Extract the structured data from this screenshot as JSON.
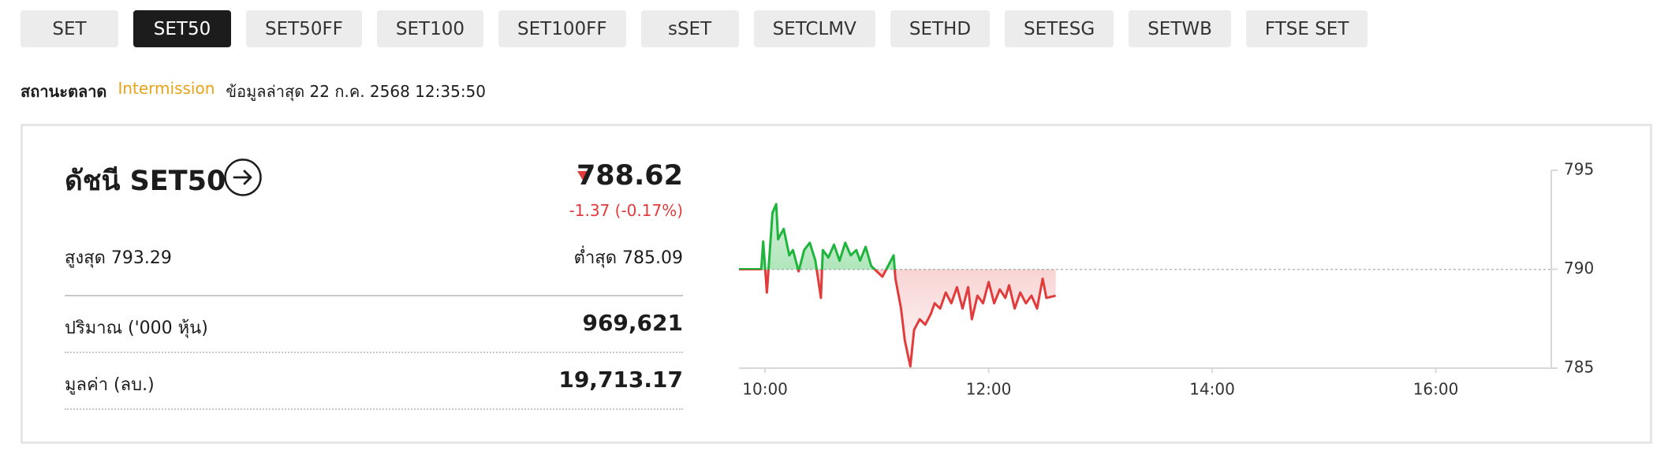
{
  "tabs": [
    "SET",
    "SET50",
    "SET50FF",
    "SET100",
    "SET100FF",
    "sSET",
    "SETCLMV",
    "SETHD",
    "SETESG",
    "SETWB",
    "FTSE SET"
  ],
  "active_tab": 1,
  "market_status": {
    "label": "สถานะตลาด",
    "value": "Intermission",
    "updated": "ข้อมูลล่าสุด 22 ก.ค. 2568 12:35:50"
  },
  "index": {
    "title": "ดัชนี SET50",
    "last": "788.62",
    "change": "-1.37 (-0.17%)",
    "high_label": "สูงสุด",
    "high": "793.29",
    "low_label": "ต่ำสุด",
    "low": "785.09",
    "volume_label": "ปริมาณ ('000 หุ้น)",
    "volume": "969,621",
    "value_label": "มูลค่า (ลบ.)",
    "value": "19,713.17"
  },
  "chart_data": {
    "type": "line",
    "x": [
      586,
      598,
      599,
      601,
      604,
      606,
      607,
      610,
      613,
      615,
      618,
      621,
      624,
      627,
      630,
      631,
      634,
      637,
      640,
      643,
      646,
      649,
      651,
      654,
      657,
      660,
      663,
      666,
      669,
      670,
      673,
      675,
      678,
      680,
      683,
      686,
      689,
      691,
      694,
      697,
      700,
      703,
      706,
      709,
      711,
      714,
      717,
      720,
      723,
      726,
      729,
      731,
      734,
      737,
      740,
      743,
      746,
      749,
      751,
      756
    ],
    "values": [
      790.0,
      790.0,
      791.4,
      788.82,
      792.85,
      793.29,
      791.51,
      792.04,
      790.7,
      790.97,
      789.89,
      790.97,
      791.34,
      790.43,
      788.55,
      790.97,
      790.59,
      791.24,
      790.43,
      791.34,
      790.7,
      790.97,
      790.43,
      791.13,
      790.16,
      789.89,
      789.62,
      790.16,
      790.7,
      789.52,
      788.01,
      786.4,
      785.09,
      786.94,
      787.47,
      787.2,
      787.74,
      788.28,
      788.01,
      788.82,
      788.28,
      789.09,
      788.01,
      789.09,
      787.47,
      788.66,
      788.28,
      789.35,
      788.28,
      788.98,
      788.55,
      789.19,
      788.01,
      788.82,
      788.28,
      788.66,
      788.01,
      789.52,
      788.55,
      788.66
    ],
    "baseline": 789.99,
    "up_color": "#1fb53c",
    "down_color": "#e23b3b",
    "xlim": [
      586,
      1022
    ],
    "xticks": [
      {
        "value": 600,
        "label": "10:00"
      },
      {
        "value": 720,
        "label": "12:00"
      },
      {
        "value": 840,
        "label": "14:00"
      },
      {
        "value": 960,
        "label": "16:00"
      }
    ],
    "ylim": [
      785,
      795
    ],
    "yticks": [
      785,
      790,
      795
    ]
  }
}
